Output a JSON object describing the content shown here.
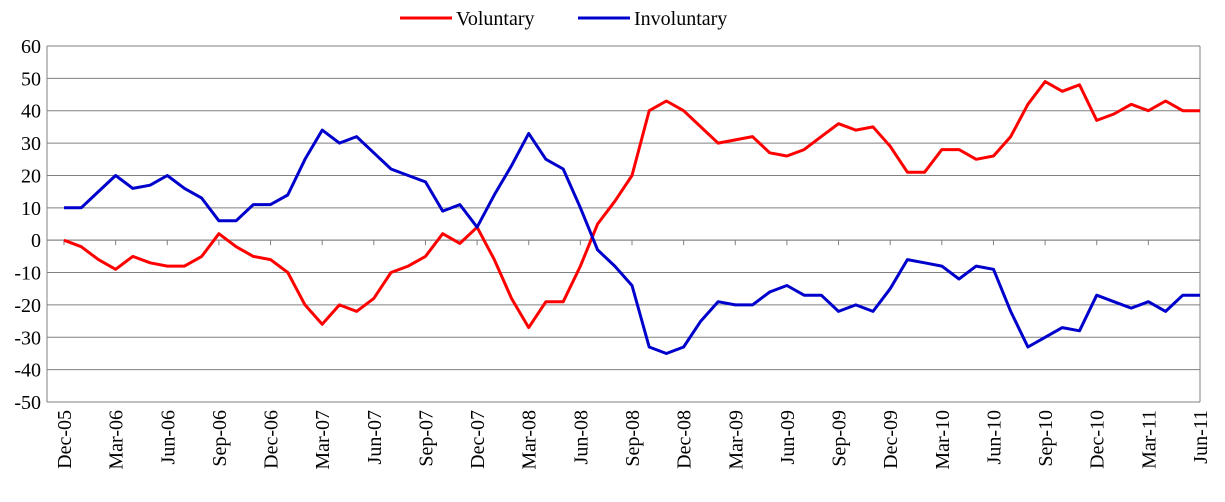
{
  "chart_data": {
    "type": "line",
    "categories": [
      "Dec-05",
      null,
      null,
      "Mar-06",
      null,
      null,
      "Jun-06",
      null,
      null,
      "Sep-06",
      null,
      null,
      "Dec-06",
      null,
      null,
      "Mar-07",
      null,
      null,
      "Jun-07",
      null,
      null,
      "Sep-07",
      null,
      null,
      "Dec-07",
      null,
      null,
      "Mar-08",
      null,
      null,
      "Jun-08",
      null,
      null,
      "Sep-08",
      null,
      null,
      "Dec-08",
      null,
      null,
      "Mar-09",
      null,
      null,
      "Jun-09",
      null,
      null,
      "Sep-09",
      null,
      null,
      "Dec-09",
      null,
      null,
      "Mar-10",
      null,
      null,
      "Jun-10",
      null,
      null,
      "Sep-10",
      null,
      null,
      "Dec-10",
      null,
      null,
      "Mar-11",
      null,
      null,
      "Jun-11"
    ],
    "series": [
      {
        "name": "Voluntary",
        "color": "#ff0000",
        "values": [
          0,
          -2,
          -6,
          -9,
          -5,
          -7,
          -8,
          -8,
          -5,
          2,
          -2,
          -5,
          -6,
          -10,
          -20,
          -26,
          -20,
          -22,
          -18,
          -10,
          -8,
          -5,
          2,
          -1,
          4,
          -6,
          -18,
          -27,
          -19,
          -19,
          -8,
          5,
          12,
          20,
          40,
          43,
          40,
          35,
          30,
          31,
          32,
          27,
          26,
          28,
          32,
          36,
          34,
          35,
          29,
          21,
          21,
          28,
          28,
          25,
          26,
          32,
          42,
          49,
          46,
          48,
          37,
          39,
          42,
          40,
          43,
          40,
          40
        ]
      },
      {
        "name": "Involuntary",
        "color": "#0000cc",
        "values": [
          10,
          10,
          15,
          20,
          16,
          17,
          20,
          16,
          13,
          6,
          6,
          11,
          11,
          14,
          25,
          34,
          30,
          32,
          27,
          22,
          20,
          18,
          9,
          11,
          4,
          14,
          23,
          33,
          25,
          22,
          10,
          -3,
          -8,
          -14,
          -33,
          -35,
          -33,
          -25,
          -19,
          -20,
          -20,
          -16,
          -14,
          -17,
          -17,
          -22,
          -20,
          -22,
          -15,
          -6,
          -7,
          -8,
          -12,
          -8,
          -9,
          -22,
          -33,
          -30,
          -27,
          -28,
          -17,
          -19,
          -21,
          -19,
          -22,
          -17,
          -17
        ]
      }
    ],
    "ylim": [
      -50,
      60
    ],
    "yticks": [
      -50,
      -40,
      -30,
      -20,
      -10,
      0,
      10,
      20,
      30,
      40,
      50,
      60
    ],
    "grid": true
  }
}
